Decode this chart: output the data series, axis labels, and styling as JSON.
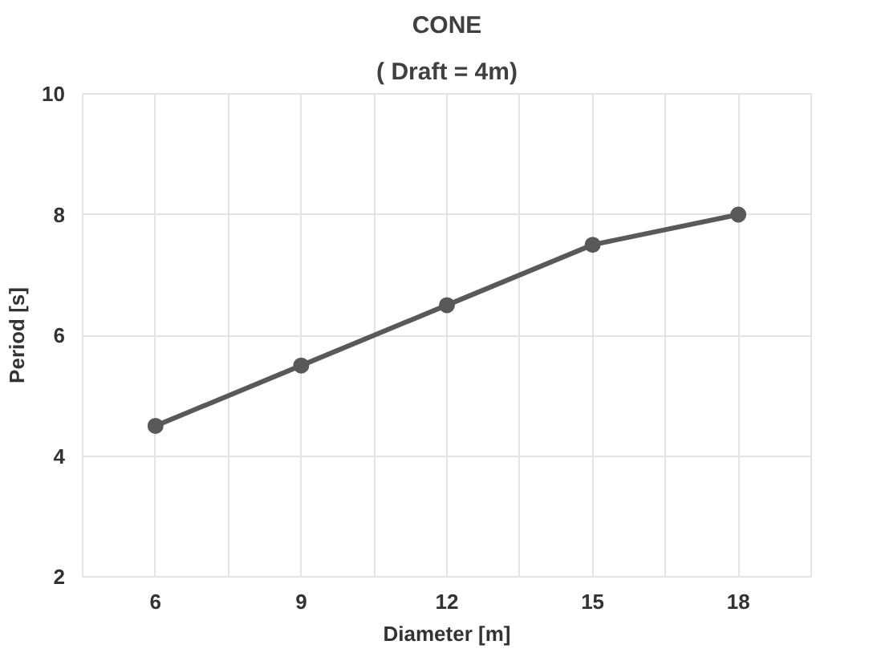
{
  "chart_data": {
    "type": "line",
    "title": "CONE",
    "subtitle": "( Draft = 4m)",
    "xlabel": "Diameter [m]",
    "ylabel": "Period [s]",
    "x": [
      6,
      9,
      12,
      15,
      18
    ],
    "series": [
      {
        "color": "#595959",
        "values": [
          4.5,
          5.5,
          6.5,
          7.5,
          8.0
        ]
      }
    ],
    "xlim": [
      4.5,
      19.5
    ],
    "xticks": [
      6,
      {
        "value": 7.5,
        "label": null
      },
      9,
      {
        "value": 10.5,
        "label": null
      },
      12,
      {
        "value": 13.5,
        "label": null
      },
      15,
      {
        "value": 16.5,
        "label": null
      },
      18
    ],
    "ylim": [
      2,
      10
    ],
    "yticks": [
      2,
      4,
      6,
      8,
      10
    ],
    "grid": true,
    "marker": "circle",
    "line_style": "solid"
  }
}
